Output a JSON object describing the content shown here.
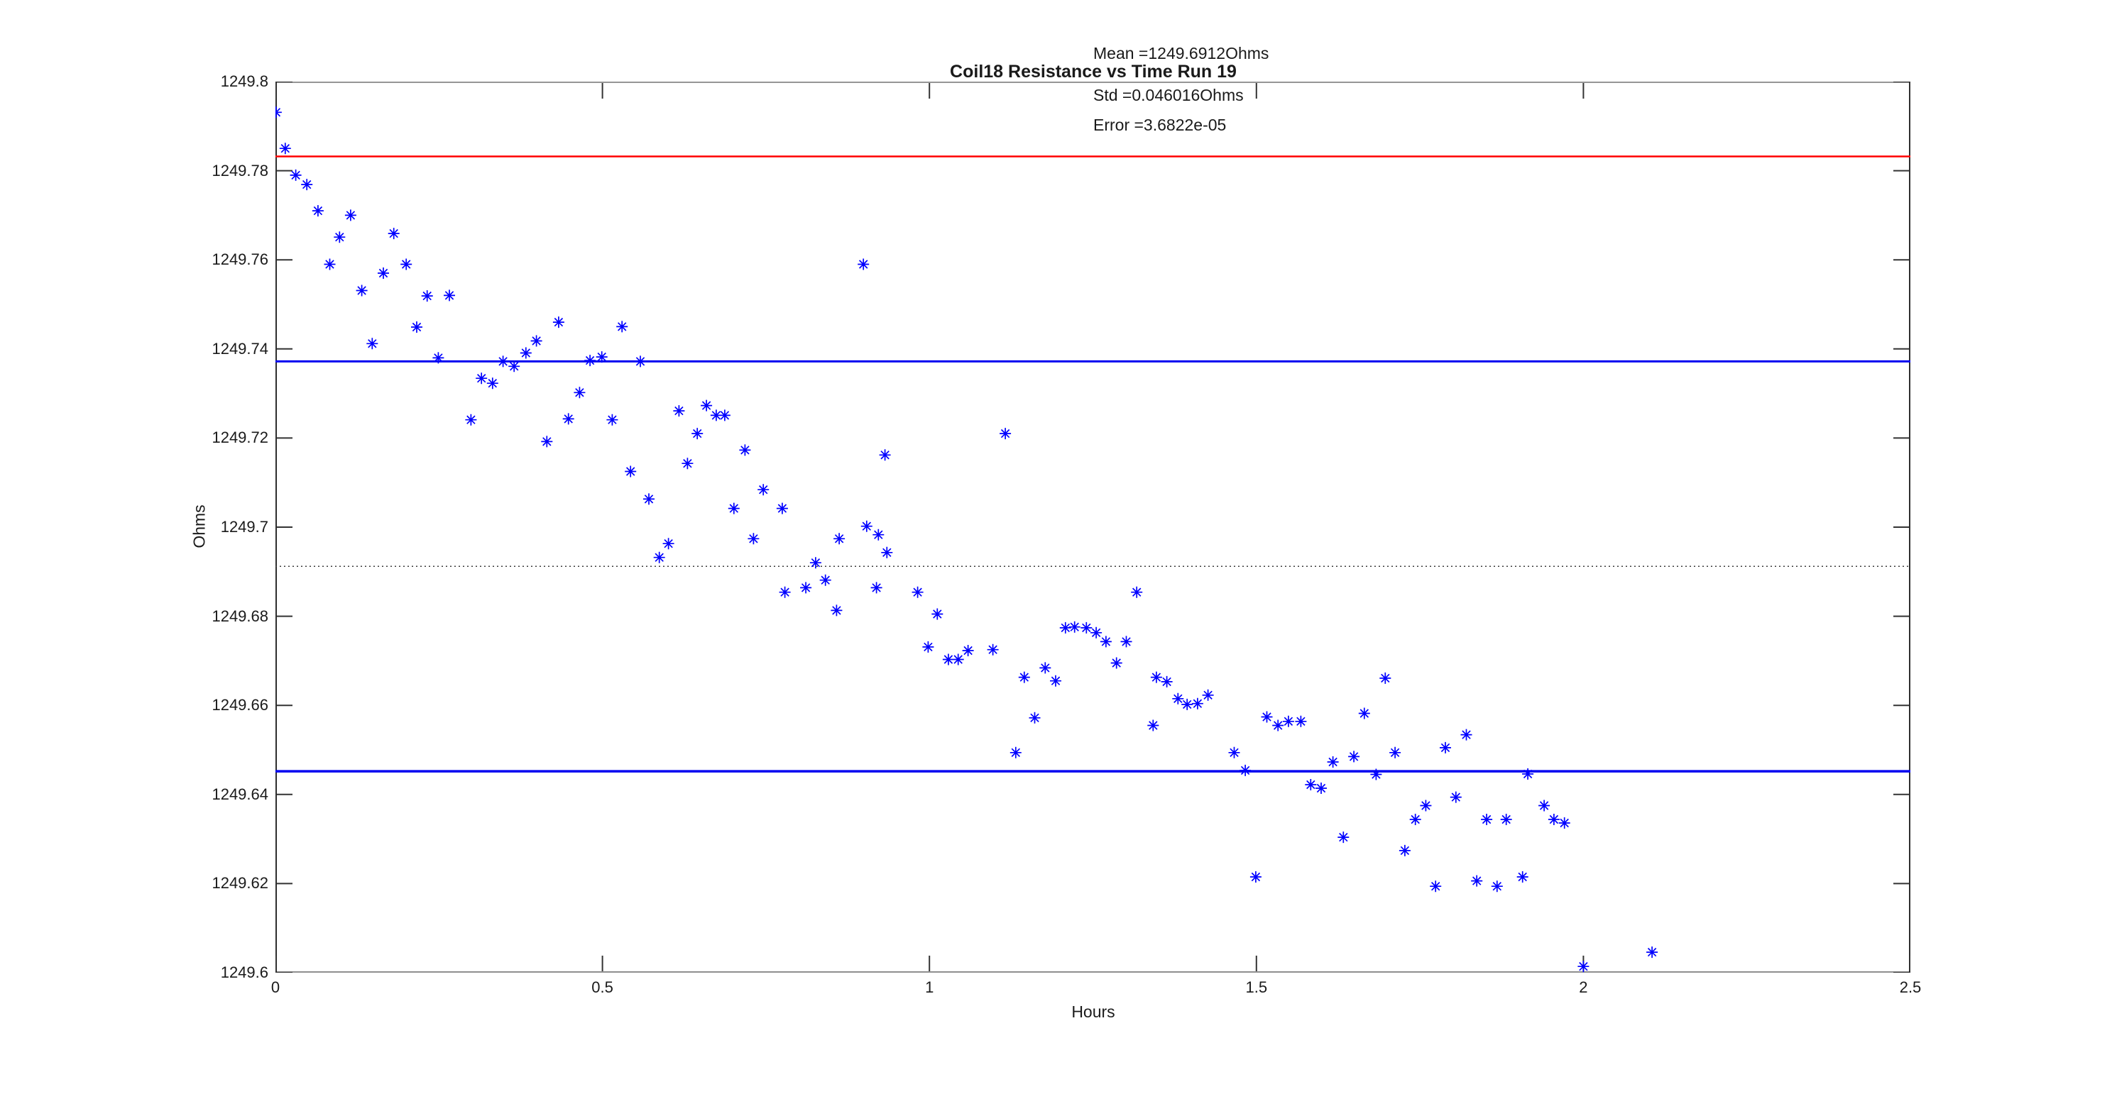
{
  "figure": {
    "title": "Coil18 Resistance vs Time Run 19",
    "xlabel": "Hours",
    "ylabel": "Ohms",
    "annotations": {
      "mean": "Mean =1249.6912Ohms",
      "std": "Std =0.046016Ohms",
      "error": "Error =3.6822e-05"
    }
  },
  "colors": {
    "marker": "#0000ff",
    "sigma_band_line": "#0000f0",
    "mean_line": "#3c3c3c",
    "two_sigma_line": "#ff0000",
    "axis_dark": "#2e2e2e",
    "axis_gray": "#969696",
    "text": "#1a1a1a"
  },
  "chart_data": {
    "type": "scatter",
    "title": "Coil18 Resistance vs Time Run 19",
    "xlabel": "Hours",
    "ylabel": "Ohms",
    "xlim": [
      0,
      2.5
    ],
    "ylim": [
      1249.6,
      1249.8
    ],
    "grid": false,
    "legend": "none",
    "marker": "asterisk",
    "marker_color": "#0000ff",
    "stats": {
      "mean": 1249.6912,
      "std": 0.046016,
      "error": 3.6822e-05
    },
    "xticks": [
      {
        "value": 0,
        "label": "0"
      },
      {
        "value": 0.5,
        "label": "0.5"
      },
      {
        "value": 1,
        "label": "1"
      },
      {
        "value": 1.5,
        "label": "1.5"
      },
      {
        "value": 2,
        "label": "2"
      },
      {
        "value": 2.5,
        "label": "2.5"
      }
    ],
    "yticks": [
      {
        "value": 1249.8,
        "label": "1249.8"
      },
      {
        "value": 1249.78,
        "label": "1249.78"
      },
      {
        "value": 1249.76,
        "label": "1249.76"
      },
      {
        "value": 1249.74,
        "label": "1249.74"
      },
      {
        "value": 1249.72,
        "label": "1249.72"
      },
      {
        "value": 1249.7,
        "label": "1249.7"
      },
      {
        "value": 1249.68,
        "label": "1249.68"
      },
      {
        "value": 1249.66,
        "label": "1249.66"
      },
      {
        "value": 1249.64,
        "label": "1249.64"
      },
      {
        "value": 1249.62,
        "label": "1249.62"
      },
      {
        "value": 1249.6,
        "label": "1249.6"
      }
    ],
    "reference_lines": [
      {
        "name": "mean-plus-2std",
        "y": 1249.7832,
        "color": "#ff0000",
        "style": "solid",
        "width": 2.5
      },
      {
        "name": "mean-plus-std",
        "y": 1249.7372,
        "color": "#0000f0",
        "style": "solid",
        "width": 3
      },
      {
        "name": "mean",
        "y": 1249.6912,
        "color": "#3c3c3c",
        "style": "dotted",
        "width": 1.5
      },
      {
        "name": "mean-minus-std",
        "y": 1249.6452,
        "color": "#0000f0",
        "style": "solid",
        "width": 3.5
      }
    ],
    "points": [
      [
        0.001,
        1249.7931
      ],
      [
        0.015,
        1249.785
      ],
      [
        0.031,
        1249.779
      ],
      [
        0.048,
        1249.7769
      ],
      [
        0.065,
        1249.771
      ],
      [
        0.083,
        1249.759
      ],
      [
        0.098,
        1249.7651
      ],
      [
        0.115,
        1249.77
      ],
      [
        0.132,
        1249.7531
      ],
      [
        0.148,
        1249.7412
      ],
      [
        0.165,
        1249.757
      ],
      [
        0.181,
        1249.7659
      ],
      [
        0.2,
        1249.759
      ],
      [
        0.216,
        1249.7449
      ],
      [
        0.232,
        1249.7519
      ],
      [
        0.249,
        1249.738
      ],
      [
        0.266,
        1249.752
      ],
      [
        0.299,
        1249.7241
      ],
      [
        0.315,
        1249.7334
      ],
      [
        0.332,
        1249.7323
      ],
      [
        0.348,
        1249.7372
      ],
      [
        0.365,
        1249.7361
      ],
      [
        0.383,
        1249.7391
      ],
      [
        0.399,
        1249.7418
      ],
      [
        0.415,
        1249.7192
      ],
      [
        0.433,
        1249.746
      ],
      [
        0.448,
        1249.7243
      ],
      [
        0.465,
        1249.7302
      ],
      [
        0.481,
        1249.7374
      ],
      [
        0.499,
        1249.7382
      ],
      [
        0.515,
        1249.7241
      ],
      [
        0.53,
        1249.745
      ],
      [
        0.543,
        1249.7125
      ],
      [
        0.558,
        1249.7372
      ],
      [
        0.571,
        1249.7063
      ],
      [
        0.587,
        1249.6932
      ],
      [
        0.601,
        1249.6963
      ],
      [
        0.617,
        1249.7261
      ],
      [
        0.63,
        1249.7143
      ],
      [
        0.645,
        1249.721
      ],
      [
        0.659,
        1249.7273
      ],
      [
        0.674,
        1249.7251
      ],
      [
        0.687,
        1249.7251
      ],
      [
        0.701,
        1249.7042
      ],
      [
        0.718,
        1249.7173
      ],
      [
        0.731,
        1249.6974
      ],
      [
        0.746,
        1249.7084
      ],
      [
        0.775,
        1249.7042
      ],
      [
        0.779,
        1249.6854
      ],
      [
        0.811,
        1249.6864
      ],
      [
        0.826,
        1249.692
      ],
      [
        0.841,
        1249.6881
      ],
      [
        0.858,
        1249.6813
      ],
      [
        0.862,
        1249.6974
      ],
      [
        0.899,
        1249.759
      ],
      [
        0.904,
        1249.7002
      ],
      [
        0.919,
        1249.6864
      ],
      [
        0.922,
        1249.6983
      ],
      [
        0.932,
        1249.7162
      ],
      [
        0.935,
        1249.6943
      ],
      [
        0.982,
        1249.6854
      ],
      [
        0.998,
        1249.6731
      ],
      [
        1.012,
        1249.6805
      ],
      [
        1.029,
        1249.6703
      ],
      [
        1.044,
        1249.6703
      ],
      [
        1.059,
        1249.6723
      ],
      [
        1.097,
        1249.6725
      ],
      [
        1.116,
        1249.721
      ],
      [
        1.132,
        1249.6494
      ],
      [
        1.145,
        1249.6663
      ],
      [
        1.161,
        1249.6572
      ],
      [
        1.177,
        1249.6684
      ],
      [
        1.193,
        1249.6655
      ],
      [
        1.208,
        1249.6774
      ],
      [
        1.222,
        1249.6776
      ],
      [
        1.24,
        1249.6774
      ],
      [
        1.255,
        1249.6763
      ],
      [
        1.27,
        1249.6743
      ],
      [
        1.286,
        1249.6695
      ],
      [
        1.301,
        1249.6743
      ],
      [
        1.317,
        1249.6854
      ],
      [
        1.342,
        1249.6555
      ],
      [
        1.347,
        1249.6663
      ],
      [
        1.363,
        1249.6653
      ],
      [
        1.38,
        1249.6615
      ],
      [
        1.394,
        1249.6602
      ],
      [
        1.41,
        1249.6604
      ],
      [
        1.426,
        1249.6623
      ],
      [
        1.466,
        1249.6494
      ],
      [
        1.483,
        1249.6454
      ],
      [
        1.499,
        1249.6215
      ],
      [
        1.516,
        1249.6574
      ],
      [
        1.533,
        1249.6555
      ],
      [
        1.549,
        1249.6564
      ],
      [
        1.568,
        1249.6564
      ],
      [
        1.583,
        1249.6422
      ],
      [
        1.599,
        1249.6414
      ],
      [
        1.617,
        1249.6473
      ],
      [
        1.633,
        1249.6304
      ],
      [
        1.649,
        1249.6485
      ],
      [
        1.665,
        1249.6582
      ],
      [
        1.683,
        1249.6445
      ],
      [
        1.697,
        1249.6661
      ],
      [
        1.712,
        1249.6494
      ],
      [
        1.727,
        1249.6274
      ],
      [
        1.743,
        1249.6344
      ],
      [
        1.759,
        1249.6375
      ],
      [
        1.774,
        1249.6194
      ],
      [
        1.789,
        1249.6505
      ],
      [
        1.805,
        1249.6394
      ],
      [
        1.821,
        1249.6534
      ],
      [
        1.837,
        1249.6206
      ],
      [
        1.852,
        1249.6344
      ],
      [
        1.868,
        1249.6194
      ],
      [
        1.882,
        1249.6344
      ],
      [
        1.907,
        1249.6215
      ],
      [
        1.915,
        1249.6446
      ],
      [
        1.94,
        1249.6375
      ],
      [
        1.955,
        1249.6344
      ],
      [
        1.971,
        1249.6336
      ],
      [
        2.0,
        1249.6014
      ],
      [
        2.105,
        1249.6046
      ]
    ]
  }
}
